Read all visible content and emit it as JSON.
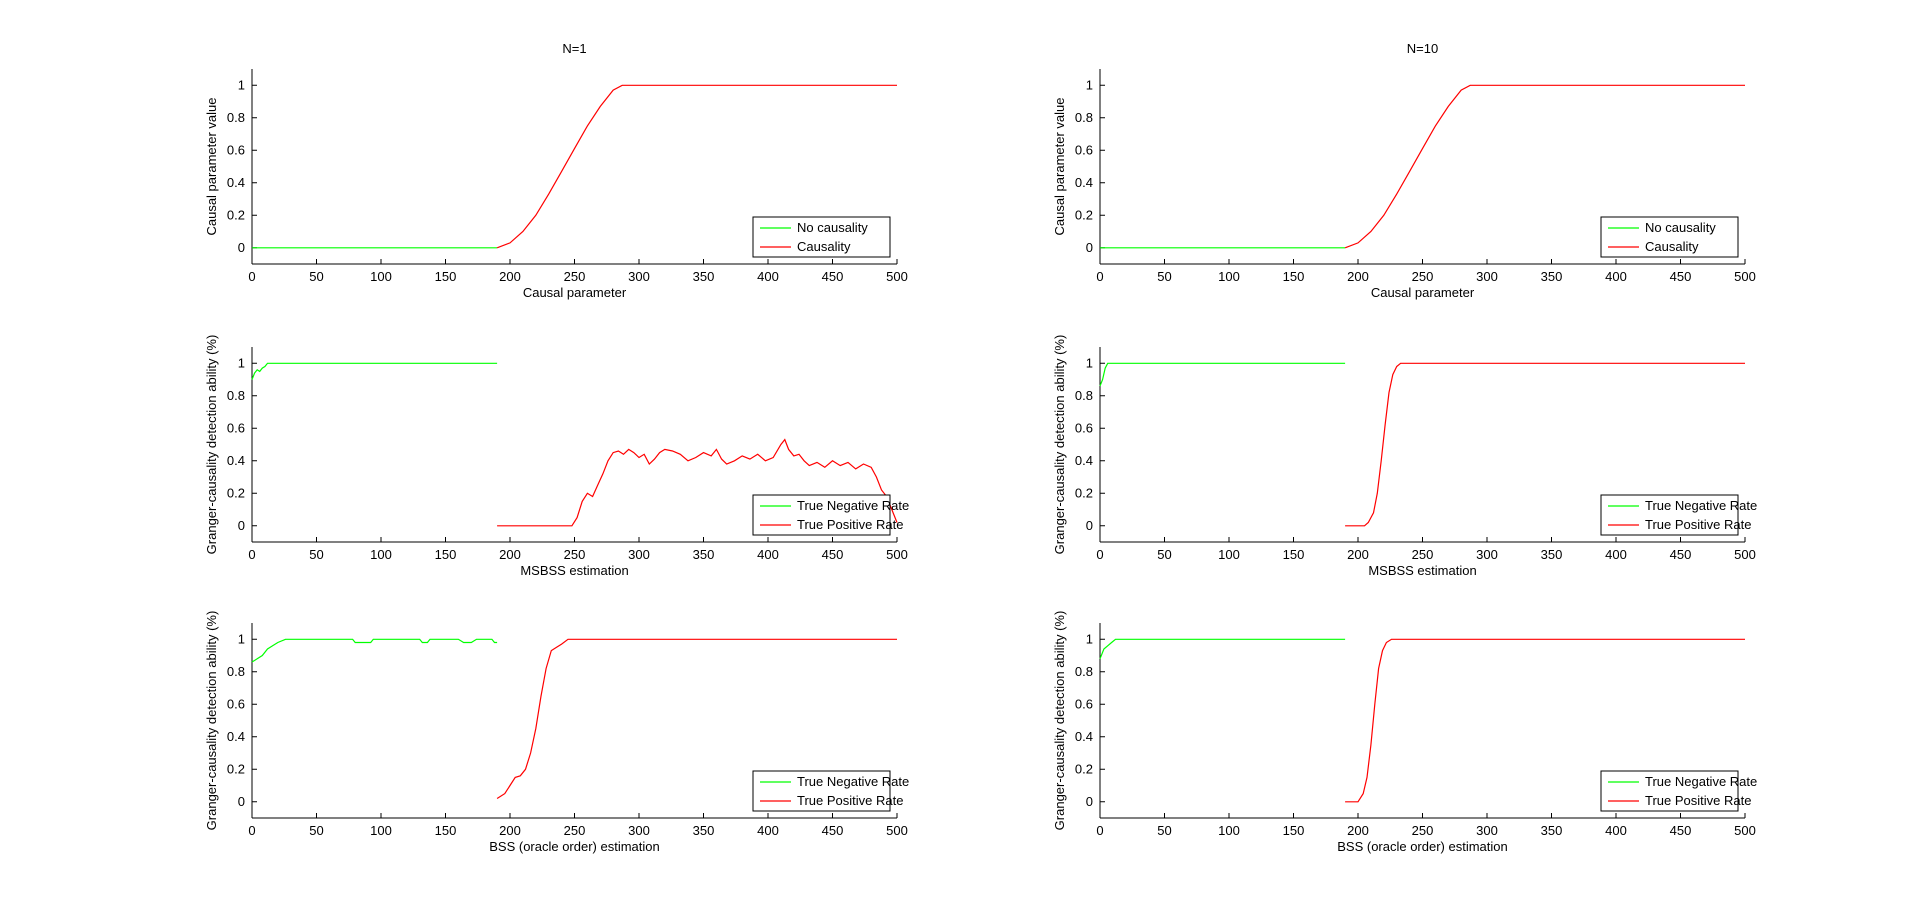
{
  "chart_data": [
    {
      "type": "line",
      "title": "N=1",
      "xlabel": "Causal parameter",
      "ylabel": "Causal parameter value",
      "xlim": [
        0,
        500
      ],
      "ylim": [
        -0.1,
        1.1
      ],
      "xticks": [
        0,
        50,
        100,
        150,
        200,
        250,
        300,
        350,
        400,
        450,
        500
      ],
      "yticks": [
        0,
        0.2,
        0.4,
        0.6,
        0.8,
        1
      ],
      "legend_position": "bottom-right",
      "series": [
        {
          "name": "No causality",
          "color": "#00ff00",
          "points": [
            [
              0,
              0
            ],
            [
              190,
              0
            ]
          ]
        },
        {
          "name": "Causality",
          "color": "#ff0000",
          "points": [
            [
              190,
              0
            ],
            [
              200,
              0.03
            ],
            [
              210,
              0.1
            ],
            [
              220,
              0.2
            ],
            [
              230,
              0.33
            ],
            [
              240,
              0.47
            ],
            [
              250,
              0.61
            ],
            [
              260,
              0.75
            ],
            [
              270,
              0.87
            ],
            [
              280,
              0.97
            ],
            [
              287,
              1.0
            ],
            [
              500,
              1.0
            ]
          ]
        }
      ]
    },
    {
      "type": "line",
      "title": "N=10",
      "xlabel": "Causal parameter",
      "ylabel": "Causal parameter value",
      "xlim": [
        0,
        500
      ],
      "ylim": [
        -0.1,
        1.1
      ],
      "xticks": [
        0,
        50,
        100,
        150,
        200,
        250,
        300,
        350,
        400,
        450,
        500
      ],
      "yticks": [
        0,
        0.2,
        0.4,
        0.6,
        0.8,
        1
      ],
      "legend_position": "bottom-right",
      "series": [
        {
          "name": "No causality",
          "color": "#00ff00",
          "points": [
            [
              0,
              0
            ],
            [
              190,
              0
            ]
          ]
        },
        {
          "name": "Causality",
          "color": "#ff0000",
          "points": [
            [
              190,
              0
            ],
            [
              200,
              0.03
            ],
            [
              210,
              0.1
            ],
            [
              220,
              0.2
            ],
            [
              230,
              0.33
            ],
            [
              240,
              0.47
            ],
            [
              250,
              0.61
            ],
            [
              260,
              0.75
            ],
            [
              270,
              0.87
            ],
            [
              280,
              0.97
            ],
            [
              287,
              1.0
            ],
            [
              500,
              1.0
            ]
          ]
        }
      ]
    },
    {
      "type": "line",
      "title": "",
      "xlabel": "MSBSS estimation",
      "ylabel": "Granger-causality detection ability (%)",
      "xlim": [
        0,
        500
      ],
      "ylim": [
        -0.1,
        1.1
      ],
      "xticks": [
        0,
        50,
        100,
        150,
        200,
        250,
        300,
        350,
        400,
        450,
        500
      ],
      "yticks": [
        0,
        0.2,
        0.4,
        0.6,
        0.8,
        1
      ],
      "legend_position": "bottom-right",
      "series": [
        {
          "name": "True Negative Rate",
          "color": "#00ff00",
          "points": [
            [
              0,
              0.9
            ],
            [
              2,
              0.94
            ],
            [
              4,
              0.96
            ],
            [
              6,
              0.95
            ],
            [
              8,
              0.97
            ],
            [
              10,
              0.98
            ],
            [
              12,
              1.0
            ],
            [
              190,
              1.0
            ]
          ]
        },
        {
          "name": "True Positive Rate",
          "color": "#ff0000",
          "points": [
            [
              190,
              0
            ],
            [
              248,
              0
            ],
            [
              252,
              0.05
            ],
            [
              256,
              0.15
            ],
            [
              260,
              0.2
            ],
            [
              264,
              0.18
            ],
            [
              268,
              0.25
            ],
            [
              272,
              0.32
            ],
            [
              276,
              0.4
            ],
            [
              280,
              0.45
            ],
            [
              284,
              0.46
            ],
            [
              288,
              0.44
            ],
            [
              292,
              0.47
            ],
            [
              296,
              0.45
            ],
            [
              300,
              0.42
            ],
            [
              304,
              0.44
            ],
            [
              308,
              0.38
            ],
            [
              312,
              0.41
            ],
            [
              316,
              0.45
            ],
            [
              320,
              0.47
            ],
            [
              326,
              0.46
            ],
            [
              332,
              0.44
            ],
            [
              338,
              0.4
            ],
            [
              344,
              0.42
            ],
            [
              350,
              0.45
            ],
            [
              356,
              0.43
            ],
            [
              360,
              0.47
            ],
            [
              364,
              0.41
            ],
            [
              368,
              0.38
            ],
            [
              374,
              0.4
            ],
            [
              380,
              0.43
            ],
            [
              386,
              0.41
            ],
            [
              392,
              0.44
            ],
            [
              398,
              0.4
            ],
            [
              404,
              0.42
            ],
            [
              410,
              0.5
            ],
            [
              413,
              0.53
            ],
            [
              416,
              0.47
            ],
            [
              420,
              0.43
            ],
            [
              424,
              0.44
            ],
            [
              428,
              0.4
            ],
            [
              432,
              0.37
            ],
            [
              438,
              0.39
            ],
            [
              444,
              0.36
            ],
            [
              450,
              0.4
            ],
            [
              456,
              0.37
            ],
            [
              462,
              0.39
            ],
            [
              468,
              0.35
            ],
            [
              474,
              0.38
            ],
            [
              480,
              0.36
            ],
            [
              484,
              0.3
            ],
            [
              488,
              0.22
            ],
            [
              492,
              0.18
            ],
            [
              496,
              0.1
            ],
            [
              500,
              0.02
            ]
          ]
        }
      ]
    },
    {
      "type": "line",
      "title": "",
      "xlabel": "MSBSS estimation",
      "ylabel": "Granger-causality detection ability (%)",
      "xlim": [
        0,
        500
      ],
      "ylim": [
        -0.1,
        1.1
      ],
      "xticks": [
        0,
        50,
        100,
        150,
        200,
        250,
        300,
        350,
        400,
        450,
        500
      ],
      "yticks": [
        0,
        0.2,
        0.4,
        0.6,
        0.8,
        1
      ],
      "legend_position": "bottom-right",
      "series": [
        {
          "name": "True Negative Rate",
          "color": "#00ff00",
          "points": [
            [
              0,
              0.86
            ],
            [
              2,
              0.9
            ],
            [
              4,
              0.97
            ],
            [
              6,
              1.0
            ],
            [
              190,
              1.0
            ]
          ]
        },
        {
          "name": "True Positive Rate",
          "color": "#ff0000",
          "points": [
            [
              190,
              0
            ],
            [
              205,
              0
            ],
            [
              208,
              0.02
            ],
            [
              212,
              0.08
            ],
            [
              215,
              0.2
            ],
            [
              218,
              0.4
            ],
            [
              221,
              0.62
            ],
            [
              224,
              0.82
            ],
            [
              227,
              0.93
            ],
            [
              230,
              0.98
            ],
            [
              233,
              1.0
            ],
            [
              500,
              1.0
            ]
          ]
        }
      ]
    },
    {
      "type": "line",
      "title": "",
      "xlabel": "BSS (oracle order) estimation",
      "ylabel": "Granger-causality detection ability (%)",
      "xlim": [
        0,
        500
      ],
      "ylim": [
        -0.1,
        1.1
      ],
      "xticks": [
        0,
        50,
        100,
        150,
        200,
        250,
        300,
        350,
        400,
        450,
        500
      ],
      "yticks": [
        0,
        0.2,
        0.4,
        0.6,
        0.8,
        1
      ],
      "legend_position": "bottom-right",
      "series": [
        {
          "name": "True Negative Rate",
          "color": "#00ff00",
          "points": [
            [
              0,
              0.86
            ],
            [
              4,
              0.88
            ],
            [
              8,
              0.9
            ],
            [
              12,
              0.94
            ],
            [
              16,
              0.96
            ],
            [
              20,
              0.98
            ],
            [
              26,
              1.0
            ],
            [
              78,
              1.0
            ],
            [
              80,
              0.98
            ],
            [
              92,
              0.98
            ],
            [
              94,
              1.0
            ],
            [
              130,
              1.0
            ],
            [
              132,
              0.98
            ],
            [
              136,
              0.98
            ],
            [
              138,
              1.0
            ],
            [
              160,
              1.0
            ],
            [
              164,
              0.98
            ],
            [
              170,
              0.98
            ],
            [
              174,
              1.0
            ],
            [
              186,
              1.0
            ],
            [
              188,
              0.98
            ],
            [
              190,
              0.98
            ]
          ]
        },
        {
          "name": "True Positive Rate",
          "color": "#ff0000",
          "points": [
            [
              190,
              0.02
            ],
            [
              196,
              0.05
            ],
            [
              200,
              0.1
            ],
            [
              204,
              0.15
            ],
            [
              208,
              0.16
            ],
            [
              212,
              0.2
            ],
            [
              216,
              0.3
            ],
            [
              220,
              0.45
            ],
            [
              224,
              0.65
            ],
            [
              228,
              0.82
            ],
            [
              232,
              0.93
            ],
            [
              236,
              0.95
            ],
            [
              240,
              0.97
            ],
            [
              245,
              1.0
            ],
            [
              500,
              1.0
            ]
          ]
        }
      ]
    },
    {
      "type": "line",
      "title": "",
      "xlabel": "BSS (oracle order) estimation",
      "ylabel": "Granger-causality detection ability (%)",
      "xlim": [
        0,
        500
      ],
      "ylim": [
        -0.1,
        1.1
      ],
      "xticks": [
        0,
        50,
        100,
        150,
        200,
        250,
        300,
        350,
        400,
        450,
        500
      ],
      "yticks": [
        0,
        0.2,
        0.4,
        0.6,
        0.8,
        1
      ],
      "legend_position": "bottom-right",
      "series": [
        {
          "name": "True Negative Rate",
          "color": "#00ff00",
          "points": [
            [
              0,
              0.88
            ],
            [
              3,
              0.94
            ],
            [
              6,
              0.96
            ],
            [
              9,
              0.98
            ],
            [
              12,
              1.0
            ],
            [
              190,
              1.0
            ]
          ]
        },
        {
          "name": "True Positive Rate",
          "color": "#ff0000",
          "points": [
            [
              190,
              0
            ],
            [
              200,
              0
            ],
            [
              204,
              0.05
            ],
            [
              207,
              0.15
            ],
            [
              210,
              0.35
            ],
            [
              213,
              0.6
            ],
            [
              216,
              0.82
            ],
            [
              219,
              0.93
            ],
            [
              222,
              0.98
            ],
            [
              226,
              1.0
            ],
            [
              500,
              1.0
            ]
          ]
        }
      ]
    }
  ]
}
